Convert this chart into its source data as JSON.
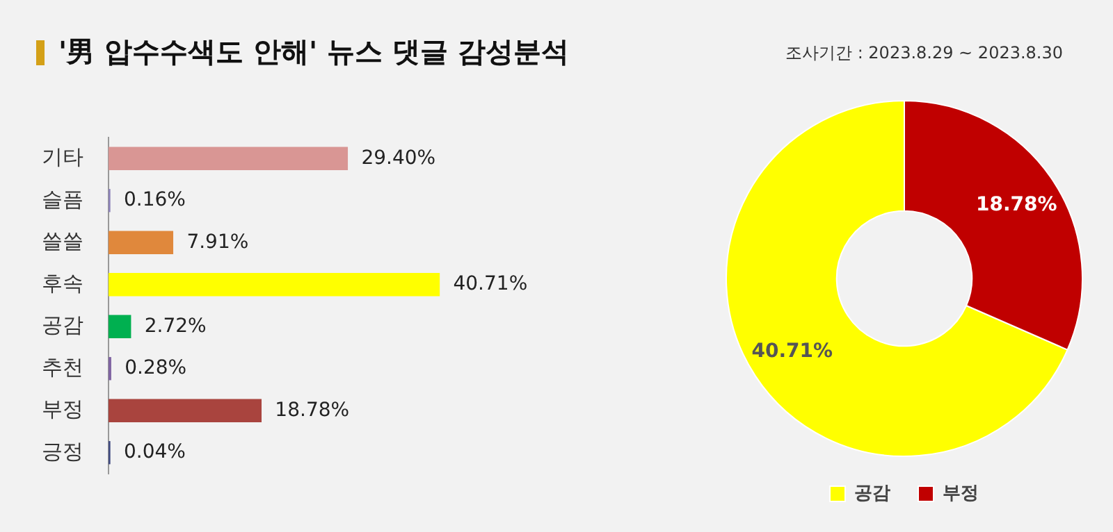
{
  "chart_data": [
    {
      "type": "bar",
      "orientation": "horizontal",
      "title": "'男 압수수색도 안해' 뉴스 댓글 감성분석",
      "annotations": [
        "조사기간 : 2023.8.29 ~ 2023.8.30"
      ],
      "categories": [
        "기타",
        "슬픔",
        "쓸쓸",
        "후속",
        "공감",
        "추천",
        "부정",
        "긍정"
      ],
      "values": [
        29.4,
        0.16,
        7.91,
        40.71,
        2.72,
        0.28,
        18.78,
        0.04
      ],
      "colors": [
        "#d99694",
        "#8c82b8",
        "#e0883c",
        "#ffff00",
        "#00b050",
        "#8064a2",
        "#a9443e",
        "#404a80"
      ],
      "value_labels": [
        "29.40%",
        "0.16%",
        "7.91%",
        "40.71%",
        "2.72%",
        "0.28%",
        "18.78%",
        "0.04%"
      ],
      "tick_labels": "y",
      "legend": false
    },
    {
      "type": "donut",
      "categories": [
        "공감",
        "부정"
      ],
      "values": [
        40.71,
        18.78
      ],
      "colors": [
        "#ffff00",
        "#c00000"
      ],
      "value_labels": [
        "40.71%",
        "18.78%"
      ],
      "legend": "bottom"
    }
  ]
}
